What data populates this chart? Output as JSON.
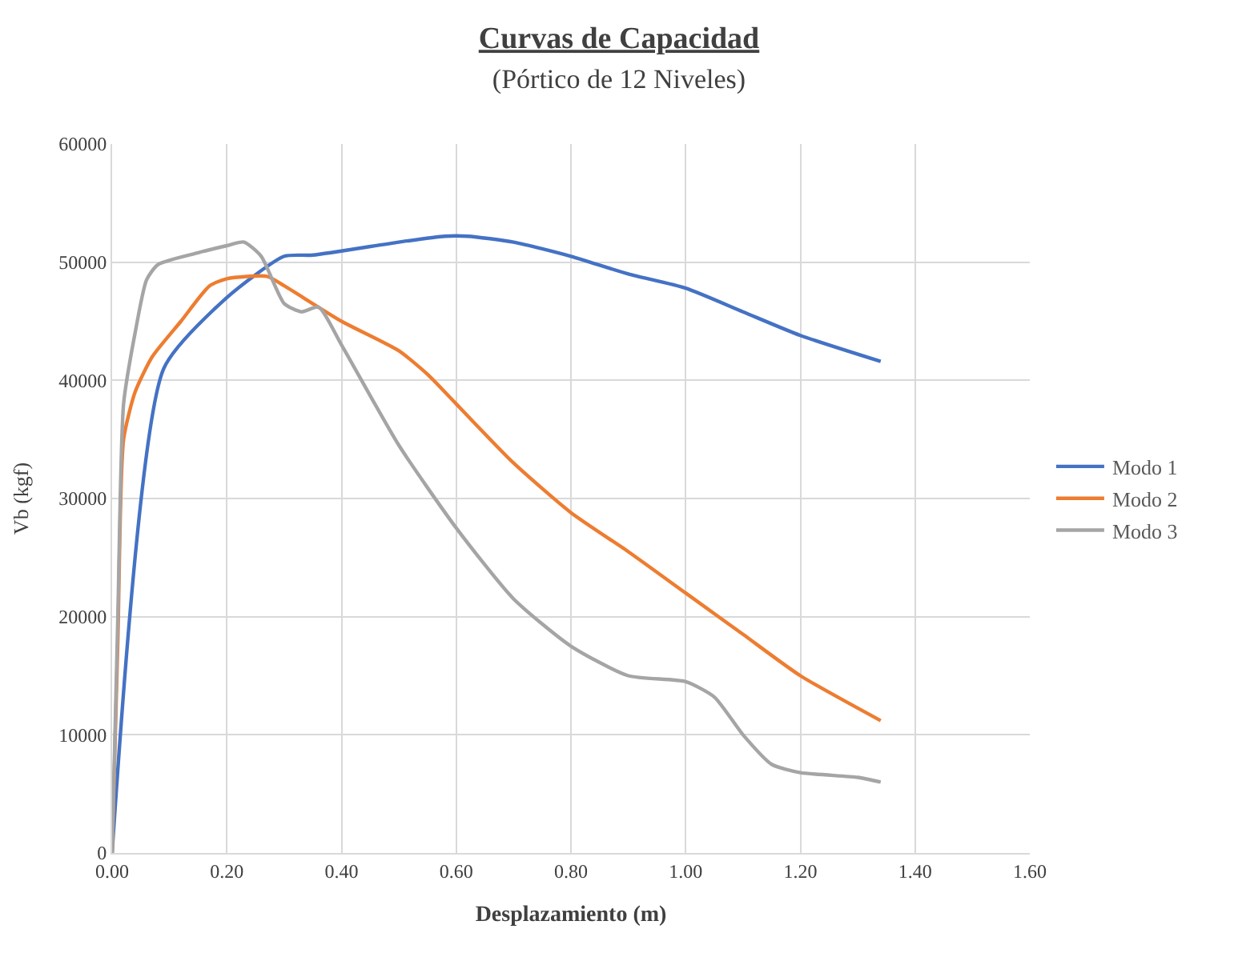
{
  "chart_data": {
    "type": "line",
    "title": "Curvas de Capacidad",
    "subtitle": "(Pórtico de 12 Niveles)",
    "xlabel": "Desplazamiento (m)",
    "ylabel": "Vb (kgf)",
    "xlim": [
      0,
      1.6
    ],
    "xticks": [
      {
        "value": 0,
        "label": "0.00"
      },
      {
        "value": 0.2,
        "label": "0.20"
      },
      {
        "value": 0.4,
        "label": "0.40"
      },
      {
        "value": 0.6,
        "label": "0.60"
      },
      {
        "value": 0.8,
        "label": "0.80"
      },
      {
        "value": 1.0,
        "label": "1.00"
      },
      {
        "value": 1.2,
        "label": "1.20"
      },
      {
        "value": 1.4,
        "label": "1.40"
      },
      {
        "value": 1.6,
        "label": "1.60"
      }
    ],
    "ylim": [
      0,
      60000
    ],
    "yticks": [
      0,
      10000,
      20000,
      30000,
      40000,
      50000,
      60000
    ],
    "grid": true,
    "legend": "right",
    "marker": "none",
    "line_style": "solid",
    "series": [
      {
        "name": "Modo 1",
        "color": "#4472c4",
        "x": [
          0,
          0.09,
          0.2,
          0.3,
          0.35,
          0.5,
          0.58,
          0.62,
          0.7,
          0.8,
          0.9,
          1.0,
          1.1,
          1.2,
          1.34
        ],
        "values": [
          0,
          41000,
          47000,
          50500,
          50600,
          51700,
          52200,
          52200,
          51700,
          50500,
          49000,
          47800,
          45800,
          43800,
          41600
        ]
      },
      {
        "name": "Modo 2",
        "color": "#ed7d31",
        "x": [
          0,
          0.01,
          0.02,
          0.04,
          0.07,
          0.12,
          0.17,
          0.2,
          0.27,
          0.3,
          0.4,
          0.5,
          0.55,
          0.6,
          0.7,
          0.8,
          0.9,
          1.0,
          1.1,
          1.2,
          1.34
        ],
        "values": [
          0,
          18000,
          35000,
          39000,
          42000,
          45000,
          48000,
          48600,
          48800,
          48000,
          45000,
          42500,
          40500,
          38000,
          33000,
          28800,
          25500,
          22000,
          18500,
          15000,
          11200
        ]
      },
      {
        "name": "Modo 3",
        "color": "#a5a5a5",
        "x": [
          0,
          0.01,
          0.02,
          0.04,
          0.06,
          0.08,
          0.15,
          0.2,
          0.23,
          0.26,
          0.3,
          0.33,
          0.36,
          0.4,
          0.5,
          0.6,
          0.7,
          0.8,
          0.9,
          1.0,
          1.05,
          1.1,
          1.15,
          1.2,
          1.3,
          1.34
        ],
        "values": [
          0,
          20000,
          38000,
          44000,
          48500,
          49800,
          50800,
          51400,
          51700,
          50500,
          46500,
          45800,
          46200,
          43000,
          34500,
          27500,
          21500,
          17500,
          15000,
          14500,
          13200,
          10000,
          7500,
          6800,
          6400,
          6000
        ]
      }
    ]
  }
}
